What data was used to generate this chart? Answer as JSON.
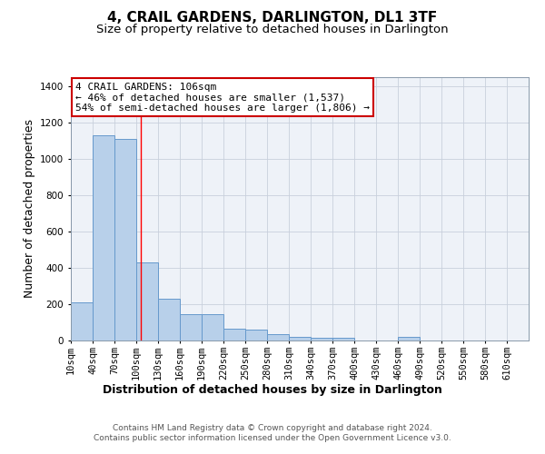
{
  "title": "4, CRAIL GARDENS, DARLINGTON, DL1 3TF",
  "subtitle": "Size of property relative to detached houses in Darlington",
  "xlabel": "Distribution of detached houses by size in Darlington",
  "ylabel": "Number of detached properties",
  "bar_color": "#b8d0ea",
  "bar_edge_color": "#6699cc",
  "background_color": "#eef2f8",
  "grid_color": "#c8d0dc",
  "bin_starts": [
    10,
    40,
    70,
    100,
    130,
    160,
    190,
    220,
    250,
    280,
    310,
    340,
    370,
    400,
    430,
    460,
    490,
    520,
    550,
    580
  ],
  "bin_width": 30,
  "bar_heights": [
    210,
    1130,
    1110,
    430,
    230,
    145,
    145,
    65,
    60,
    35,
    20,
    15,
    15,
    0,
    0,
    20,
    0,
    0,
    0,
    0
  ],
  "ylim": [
    0,
    1450
  ],
  "yticks": [
    0,
    200,
    400,
    600,
    800,
    1000,
    1200,
    1400
  ],
  "xtick_labels": [
    "10sqm",
    "40sqm",
    "70sqm",
    "100sqm",
    "130sqm",
    "160sqm",
    "190sqm",
    "220sqm",
    "250sqm",
    "280sqm",
    "310sqm",
    "340sqm",
    "370sqm",
    "400sqm",
    "430sqm",
    "460sqm",
    "490sqm",
    "520sqm",
    "550sqm",
    "580sqm",
    "610sqm"
  ],
  "red_line_x": 106,
  "annotation_line1": "4 CRAIL GARDENS: 106sqm",
  "annotation_line2": "← 46% of detached houses are smaller (1,537)",
  "annotation_line3": "54% of semi-detached houses are larger (1,806) →",
  "annotation_box_color": "#ffffff",
  "annotation_border_color": "#cc0000",
  "footer_text": "Contains HM Land Registry data © Crown copyright and database right 2024.\nContains public sector information licensed under the Open Government Licence v3.0.",
  "title_fontsize": 11,
  "subtitle_fontsize": 9.5,
  "axis_label_fontsize": 9,
  "tick_fontsize": 7.5,
  "annotation_fontsize": 8,
  "footer_fontsize": 6.5
}
